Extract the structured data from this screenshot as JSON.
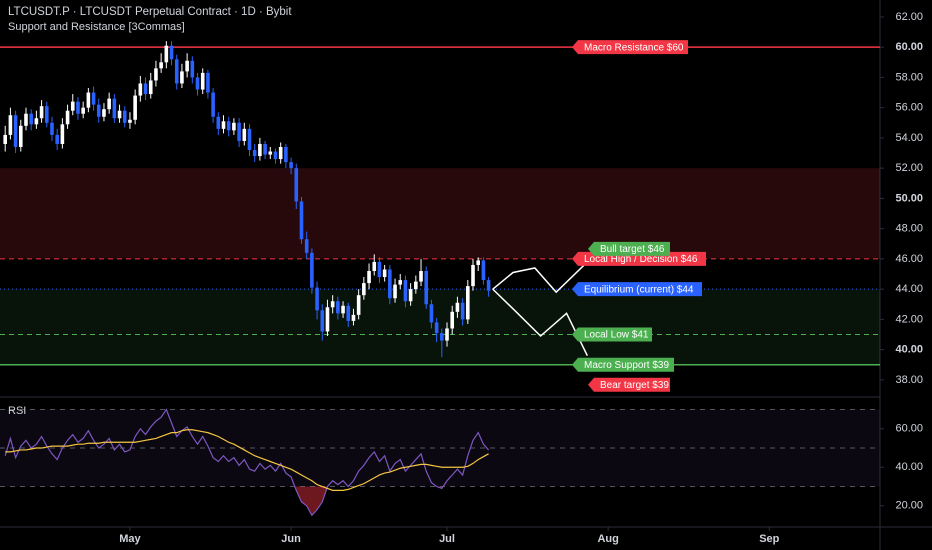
{
  "chart_data": [
    {
      "type": "candlestick",
      "title": "LTCUSDT.P · LTCUSDT Perpetual Contract · 1D · Bybit",
      "subtitle": "Support and Resistance [3Commas]",
      "x": [
        0,
        1,
        2,
        3,
        4,
        5,
        6,
        7,
        8,
        9,
        10,
        11,
        12,
        13,
        14,
        15,
        16,
        17,
        18,
        19,
        20,
        21,
        22,
        23,
        24,
        25,
        26,
        27,
        28,
        29,
        30,
        31,
        32,
        33,
        34,
        35,
        36,
        37,
        38,
        39,
        40,
        41,
        42,
        43,
        44,
        45,
        46,
        47,
        48,
        49,
        50,
        51,
        52,
        53,
        54,
        55,
        56,
        57,
        58,
        59,
        60,
        61,
        62,
        63,
        64,
        65,
        66,
        67,
        68,
        69,
        70,
        71,
        72,
        73,
        74,
        75,
        76,
        77,
        78,
        79,
        80,
        81,
        82,
        83,
        84,
        85,
        86,
        87,
        88,
        89,
        90,
        91,
        92,
        93
      ],
      "open": [
        53.6,
        54.2,
        55.5,
        53.4,
        54.8,
        55.6,
        54.9,
        55.3,
        56.1,
        55.0,
        54.2,
        53.6,
        54.9,
        55.8,
        56.4,
        55.6,
        56.0,
        57.0,
        56.2,
        55.4,
        55.9,
        56.6,
        55.3,
        55.8,
        55.0,
        55.2,
        56.8,
        57.6,
        56.9,
        57.8,
        58.6,
        59.0,
        60.1,
        59.2,
        57.6,
        58.4,
        59.1,
        58.0,
        57.2,
        58.3,
        57.0,
        55.4,
        54.6,
        55.1,
        54.5,
        55.0,
        53.8,
        54.6,
        53.2,
        52.8,
        53.6,
        52.9,
        53.1,
        52.6,
        53.4,
        52.4,
        52.0,
        49.8,
        47.3,
        46.4,
        44.1,
        42.6,
        41.2,
        42.8,
        43.2,
        42.4,
        42.9,
        41.9,
        42.3,
        43.6,
        44.4,
        45.2,
        45.8,
        44.8,
        45.3,
        43.4,
        44.3,
        44.6,
        43.2,
        44.0,
        44.5,
        45.2,
        43.0,
        41.8,
        41.1,
        40.6,
        41.4,
        42.5,
        43.1,
        42.0,
        44.2,
        45.6,
        45.9,
        44.6
      ],
      "high": [
        54.8,
        56.0,
        55.8,
        55.2,
        56.0,
        55.9,
        55.8,
        56.5,
        56.4,
        55.4,
        54.6,
        55.3,
        56.2,
        56.9,
        56.7,
        56.4,
        57.3,
        57.4,
        56.6,
        56.3,
        57.0,
        56.9,
        56.2,
        56.1,
        55.7,
        57.2,
        58.1,
        58.0,
        58.3,
        59.1,
        59.6,
        60.4,
        60.4,
        59.5,
        58.9,
        59.6,
        59.4,
        58.3,
        58.6,
        58.5,
        57.3,
        55.7,
        55.5,
        55.4,
        55.3,
        55.3,
        55.0,
        54.9,
        53.6,
        54.0,
        53.8,
        53.4,
        53.3,
        53.7,
        53.6,
        52.7,
        52.3,
        50.1,
        47.8,
        46.7,
        44.5,
        43.0,
        43.3,
        43.6,
        43.5,
        43.2,
        43.1,
        42.7,
        44.0,
        44.8,
        45.7,
        46.3,
        46.1,
        45.6,
        45.6,
        44.7,
        45.0,
        44.9,
        44.4,
        44.9,
        46.0,
        45.5,
        43.3,
        42.1,
        41.4,
        41.8,
        42.9,
        43.5,
        43.4,
        44.6,
        46.0,
        46.1,
        46.1,
        44.8
      ],
      "low": [
        53.1,
        53.9,
        53.0,
        53.1,
        54.5,
        54.5,
        54.6,
        55.0,
        54.7,
        53.8,
        53.2,
        53.3,
        54.6,
        55.5,
        55.2,
        55.3,
        55.7,
        55.8,
        55.0,
        55.1,
        55.6,
        55.0,
        55.0,
        54.7,
        54.6,
        54.9,
        56.4,
        56.5,
        56.6,
        57.4,
        58.3,
        58.6,
        58.8,
        57.2,
        57.3,
        58.0,
        57.6,
        56.8,
        56.9,
        56.6,
        55.0,
        54.2,
        54.3,
        54.1,
        54.2,
        53.4,
        53.5,
        52.8,
        52.4,
        52.5,
        52.6,
        52.6,
        52.3,
        52.3,
        52.0,
        51.6,
        49.3,
        47.0,
        46.0,
        43.7,
        42.0,
        40.6,
        40.9,
        42.4,
        42.0,
        42.1,
        41.5,
        41.6,
        42.0,
        43.3,
        44.0,
        44.9,
        44.4,
        44.5,
        43.0,
        43.1,
        44.0,
        42.8,
        42.9,
        43.7,
        44.2,
        42.7,
        41.4,
        40.5,
        39.5,
        40.2,
        41.0,
        42.1,
        41.6,
        41.7,
        43.9,
        45.2,
        44.3,
        43.5
      ],
      "close": [
        54.2,
        55.5,
        53.4,
        54.8,
        55.6,
        54.9,
        55.3,
        56.1,
        55.0,
        54.2,
        53.6,
        54.9,
        55.8,
        56.4,
        55.6,
        56.0,
        57.0,
        56.2,
        55.4,
        55.9,
        56.6,
        55.3,
        55.8,
        55.0,
        55.2,
        56.8,
        57.6,
        56.9,
        57.8,
        58.6,
        59.0,
        60.1,
        59.2,
        57.6,
        58.4,
        59.1,
        58.0,
        57.2,
        58.3,
        57.0,
        55.4,
        54.6,
        55.1,
        54.5,
        55.0,
        53.8,
        54.6,
        53.2,
        52.8,
        53.6,
        52.9,
        53.1,
        52.6,
        53.4,
        52.4,
        52.0,
        49.8,
        47.3,
        46.4,
        44.1,
        42.6,
        41.2,
        42.8,
        43.2,
        42.4,
        42.9,
        41.9,
        42.3,
        43.6,
        44.4,
        45.2,
        45.8,
        44.8,
        45.3,
        43.4,
        44.3,
        44.6,
        43.2,
        44.0,
        44.5,
        45.2,
        43.0,
        41.8,
        41.1,
        40.6,
        41.4,
        42.5,
        43.1,
        42.0,
        44.2,
        45.6,
        45.9,
        44.6,
        43.9
      ],
      "up_color": "#ffffff",
      "down_color": "#2962ff",
      "xlim": [
        -1,
        168.3
      ],
      "ylim": [
        37.0,
        63.12
      ],
      "yticks": [
        {
          "value": 38,
          "label": "38.00"
        },
        {
          "value": 40,
          "label": "40.00"
        },
        {
          "value": 42,
          "label": "42.00"
        },
        {
          "value": 44,
          "label": "44.00"
        },
        {
          "value": 46,
          "label": "46.00"
        },
        {
          "value": 48,
          "label": "48.00"
        },
        {
          "value": 50,
          "label": "50.00"
        },
        {
          "value": 52,
          "label": "52.00"
        },
        {
          "value": 54,
          "label": "54.00"
        },
        {
          "value": 56,
          "label": "56.00"
        },
        {
          "value": 58,
          "label": "58.00"
        },
        {
          "value": 60,
          "label": "60.00"
        },
        {
          "value": 62,
          "label": "62.00"
        }
      ],
      "zones": [
        {
          "from": 46,
          "to": 52,
          "color": "rgba(242,54,69,0.16)"
        },
        {
          "from": 39,
          "to": 44,
          "color": "rgba(76,175,80,0.11)"
        }
      ],
      "levels": [
        {
          "value": 60,
          "label": "Macro Resistance $60",
          "color": "#f23645",
          "style": "solid"
        },
        {
          "value": 46,
          "label": "Local High / Decision $46",
          "color": "#f23645",
          "style": "dashed"
        },
        {
          "value": 44,
          "label": "Equilibrium (current) $44",
          "color": "#2962ff",
          "style": "dotted"
        },
        {
          "value": 41,
          "label": "Local Low $41",
          "color": "#4caf50",
          "style": "dashed"
        },
        {
          "value": 39,
          "label": "Macro Support $39",
          "color": "#4caf50",
          "style": "solid"
        }
      ],
      "targets": [
        {
          "value": 46,
          "label": "Bull target $46",
          "color": "#4caf50"
        },
        {
          "value": 39,
          "label": "Bear target $39",
          "color": "#f23645"
        }
      ],
      "projections": [
        {
          "x": [
            93.8,
            97.7,
            101.9,
            106,
            112
          ],
          "y": [
            44.0,
            45.1,
            45.4,
            43.8,
            45.8
          ]
        },
        {
          "x": [
            93.8,
            98,
            103,
            108,
            112
          ],
          "y": [
            44.0,
            42.6,
            40.9,
            42.4,
            39.6
          ]
        }
      ]
    },
    {
      "type": "line",
      "title": "RSI",
      "x": [
        0,
        1,
        2,
        3,
        4,
        5,
        6,
        7,
        8,
        9,
        10,
        11,
        12,
        13,
        14,
        15,
        16,
        17,
        18,
        19,
        20,
        21,
        22,
        23,
        24,
        25,
        26,
        27,
        28,
        29,
        30,
        31,
        32,
        33,
        34,
        35,
        36,
        37,
        38,
        39,
        40,
        41,
        42,
        43,
        44,
        45,
        46,
        47,
        48,
        49,
        50,
        51,
        52,
        53,
        54,
        55,
        56,
        57,
        58,
        59,
        60,
        61,
        62,
        63,
        64,
        65,
        66,
        67,
        68,
        69,
        70,
        71,
        72,
        73,
        74,
        75,
        76,
        77,
        78,
        79,
        80,
        81,
        82,
        83,
        84,
        85,
        86,
        87,
        88,
        89,
        90,
        91,
        92,
        93
      ],
      "series": [
        {
          "color": "#7e57c2",
          "values": [
            46,
            55,
            45,
            51,
            54,
            50,
            52,
            56,
            51,
            47,
            44,
            50,
            54,
            57,
            53,
            55,
            59,
            54,
            50,
            52,
            55,
            49,
            52,
            48,
            49,
            56,
            60,
            57,
            61,
            64,
            66,
            70,
            63,
            56,
            59,
            61,
            56,
            52,
            56,
            51,
            45,
            43,
            46,
            43,
            45,
            41,
            44,
            39,
            38,
            42,
            39,
            41,
            38,
            42,
            37,
            35,
            28,
            22,
            20,
            15,
            18,
            22,
            30,
            33,
            31,
            33,
            30,
            33,
            38,
            41,
            45,
            48,
            43,
            46,
            38,
            42,
            44,
            38,
            41,
            44,
            47,
            38,
            32,
            30,
            29,
            33,
            36,
            39,
            36,
            46,
            54,
            58,
            52,
            49
          ]
        },
        {
          "color": "#f5c542",
          "values": [
            48,
            48,
            48.5,
            49,
            49,
            49.5,
            50,
            50,
            50.5,
            51,
            51,
            51,
            51,
            51.5,
            52,
            52,
            52.5,
            52.5,
            52.5,
            53,
            53,
            53,
            53,
            53,
            53,
            53,
            53.5,
            54,
            54.5,
            55,
            56,
            57,
            58,
            58,
            59,
            59.5,
            59.5,
            59,
            58.5,
            58,
            57,
            56,
            54.5,
            53,
            52,
            50.5,
            49,
            47.5,
            46,
            45,
            44,
            43,
            42,
            41,
            40,
            39,
            37.5,
            36,
            34.5,
            33,
            31,
            30,
            29,
            28,
            28,
            28,
            28.5,
            29.5,
            30.5,
            31.5,
            33,
            34.5,
            36,
            37,
            37.5,
            38.5,
            39.5,
            40,
            40.5,
            41,
            41.5,
            41.5,
            41,
            40.5,
            40,
            40,
            40,
            40,
            40,
            40.5,
            42,
            44,
            45.5,
            47
          ]
        }
      ],
      "levels": [
        30,
        50,
        70
      ],
      "xlim": [
        -1,
        168.3
      ],
      "ylim": [
        10,
        76
      ],
      "yticks": [
        {
          "value": 20,
          "label": "20.00"
        },
        {
          "value": 40,
          "label": "40.00"
        },
        {
          "value": 60,
          "label": "60.00"
        }
      ],
      "xticks": [
        {
          "value": 24,
          "label": "May"
        },
        {
          "value": 55,
          "label": "Jun"
        },
        {
          "value": 85,
          "label": "Jul"
        },
        {
          "value": 116,
          "label": "Aug"
        },
        {
          "value": 147,
          "label": "Sep"
        }
      ]
    }
  ]
}
